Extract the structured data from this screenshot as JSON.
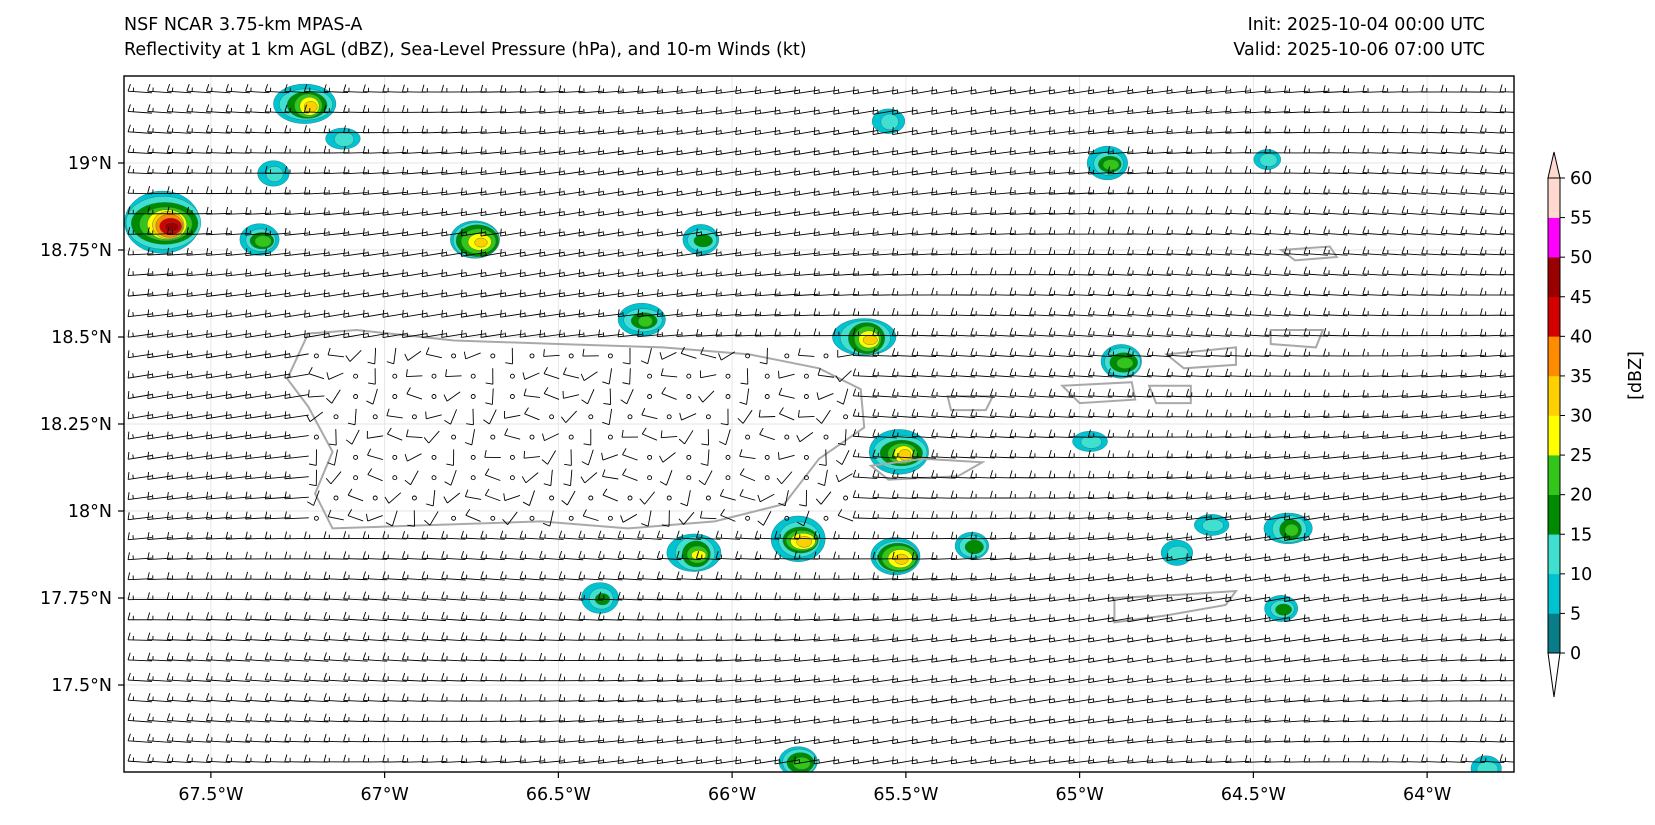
{
  "header": {
    "model": "NSF NCAR 3.75-km MPAS-A",
    "subtitle": "Reflectivity at 1 km AGL (dBZ), Sea-Level Pressure (hPa), and 10-m Winds (kt)",
    "init": "Init: 2025-10-04 00:00 UTC",
    "valid": "Valid: 2025-10-06 07:00 UTC"
  },
  "map": {
    "region": "Puerto Rico and Virgin Islands",
    "lon_range": [
      -67.75,
      -63.75
    ],
    "lat_range": [
      17.25,
      19.25
    ],
    "x_ticks": [
      {
        "value": -67.5,
        "label": "67.5°W"
      },
      {
        "value": -67.0,
        "label": "67°W"
      },
      {
        "value": -66.5,
        "label": "66.5°W"
      },
      {
        "value": -66.0,
        "label": "66°W"
      },
      {
        "value": -65.5,
        "label": "65.5°W"
      },
      {
        "value": -65.0,
        "label": "65°W"
      },
      {
        "value": -64.5,
        "label": "64.5°W"
      },
      {
        "value": -64.0,
        "label": "64°W"
      }
    ],
    "y_ticks": [
      {
        "value": 19.0,
        "label": "19°N"
      },
      {
        "value": 18.75,
        "label": "18.75°N"
      },
      {
        "value": 18.5,
        "label": "18.5°N"
      },
      {
        "value": 18.25,
        "label": "18.25°N"
      },
      {
        "value": 18.0,
        "label": "18°N"
      },
      {
        "value": 17.75,
        "label": "17.75°N"
      },
      {
        "value": 17.5,
        "label": "17.5°N"
      }
    ],
    "wind": {
      "field": "10-m Winds (kt)",
      "prevailing": "easterly",
      "typical_speed_kt": 15
    },
    "cells": [
      {
        "lon": -67.64,
        "lat": 18.83,
        "peak_dbz": 45
      },
      {
        "lon": -67.23,
        "lat": 19.17,
        "peak_dbz": 30
      },
      {
        "lon": -67.12,
        "lat": 19.07,
        "peak_dbz": 10
      },
      {
        "lon": -67.32,
        "lat": 18.97,
        "peak_dbz": 10
      },
      {
        "lon": -67.36,
        "lat": 18.78,
        "peak_dbz": 20
      },
      {
        "lon": -66.74,
        "lat": 18.78,
        "peak_dbz": 30
      },
      {
        "lon": -66.09,
        "lat": 18.78,
        "peak_dbz": 15
      },
      {
        "lon": -66.26,
        "lat": 18.55,
        "peak_dbz": 20
      },
      {
        "lon": -65.62,
        "lat": 18.5,
        "peak_dbz": 30
      },
      {
        "lon": -65.55,
        "lat": 19.12,
        "peak_dbz": 10
      },
      {
        "lon": -64.92,
        "lat": 19.0,
        "peak_dbz": 20
      },
      {
        "lon": -64.46,
        "lat": 19.01,
        "peak_dbz": 10
      },
      {
        "lon": -64.88,
        "lat": 18.43,
        "peak_dbz": 20
      },
      {
        "lon": -65.52,
        "lat": 18.17,
        "peak_dbz": 30
      },
      {
        "lon": -64.97,
        "lat": 18.2,
        "peak_dbz": 10
      },
      {
        "lon": -66.11,
        "lat": 17.88,
        "peak_dbz": 25
      },
      {
        "lon": -65.81,
        "lat": 17.92,
        "peak_dbz": 30
      },
      {
        "lon": -65.53,
        "lat": 17.87,
        "peak_dbz": 30
      },
      {
        "lon": -65.31,
        "lat": 17.9,
        "peak_dbz": 15
      },
      {
        "lon": -64.72,
        "lat": 17.88,
        "peak_dbz": 10
      },
      {
        "lon": -64.62,
        "lat": 17.96,
        "peak_dbz": 10
      },
      {
        "lon": -64.4,
        "lat": 17.95,
        "peak_dbz": 20
      },
      {
        "lon": -66.38,
        "lat": 17.75,
        "peak_dbz": 15
      },
      {
        "lon": -64.42,
        "lat": 17.72,
        "peak_dbz": 15
      },
      {
        "lon": -65.81,
        "lat": 17.28,
        "peak_dbz": 20
      },
      {
        "lon": -63.83,
        "lat": 17.26,
        "peak_dbz": 10
      }
    ]
  },
  "colorbar": {
    "label": "[dBZ]",
    "levels": [
      0,
      5,
      10,
      15,
      20,
      25,
      30,
      35,
      40,
      45,
      50,
      55,
      60
    ],
    "tick_labels": [
      "0",
      "5",
      "10",
      "15",
      "20",
      "25",
      "30",
      "35",
      "40",
      "45",
      "50",
      "55",
      "60"
    ],
    "colors": [
      "#087d88",
      "#00c3d2",
      "#3fe0d0",
      "#008a00",
      "#33c51a",
      "#ffff00",
      "#ffd000",
      "#ff8c00",
      "#d40000",
      "#9a0000",
      "#ff00ff",
      "#ffd8d0"
    ]
  }
}
